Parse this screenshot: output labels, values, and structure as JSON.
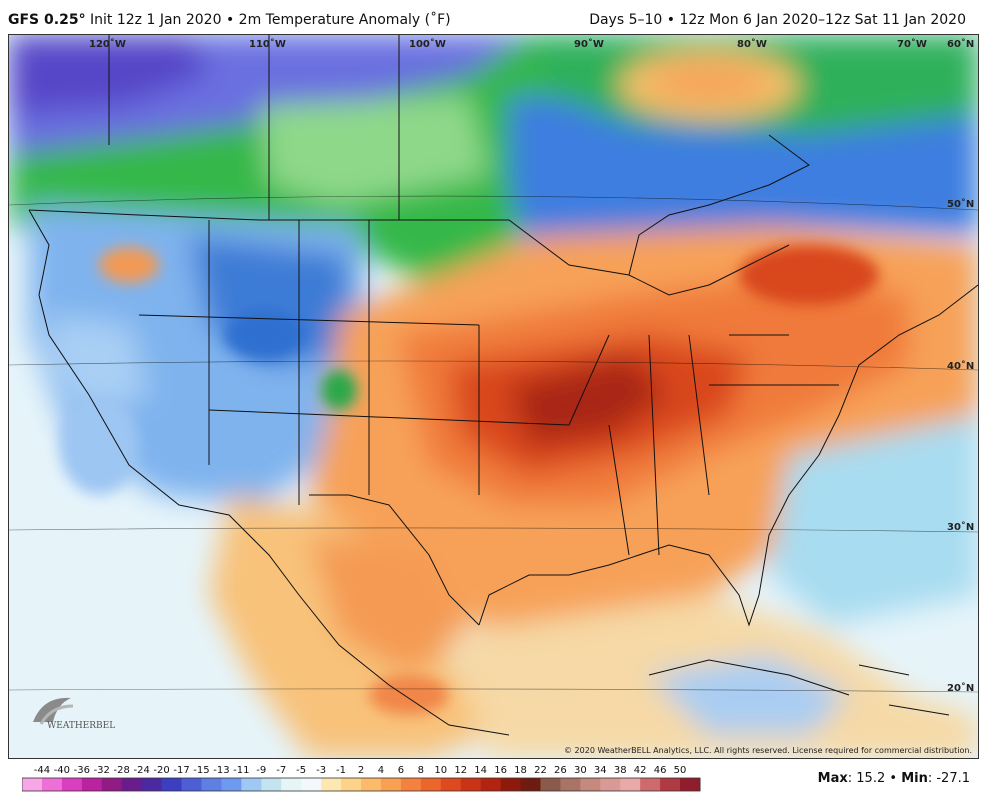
{
  "header": {
    "model": "GFS 0.25",
    "degree_mark": "°",
    "init": "Init 12z 1 Jan 2020",
    "bullet": "•",
    "field": "2m Temperature Anomaly (˚F)",
    "valid": "Days 5–10 • 12z Mon 6 Jan 2020–12z Sat 11 Jan 2020"
  },
  "map": {
    "lon_labels": [
      "120˚W",
      "110˚W",
      "100˚W",
      "90˚W",
      "80˚W",
      "70˚W",
      "60˚N"
    ],
    "lat_labels": [
      "50˚N",
      "40˚N",
      "30˚N",
      "20˚N"
    ],
    "copyright": "© 2020 WeatherBELL Analytics, LLC. All rights reserved. License required for commercial distribution.",
    "logo_text": "WEATHERBELL"
  },
  "colorbar": {
    "labels": [
      "-44",
      "-40",
      "-36",
      "-32",
      "-28",
      "-24",
      "-20",
      "-17",
      "-15",
      "-13",
      "-11",
      "-9",
      "-7",
      "-5",
      "-3",
      "-1",
      "2",
      "4",
      "6",
      "8",
      "10",
      "12",
      "14",
      "16",
      "18",
      "22",
      "26",
      "30",
      "34",
      "38",
      "42",
      "46",
      "50"
    ],
    "colors": [
      "#f7a6e6",
      "#ee70d6",
      "#db3fc1",
      "#b9239f",
      "#911a85",
      "#6a1c8c",
      "#4b2aa1",
      "#3b3fc0",
      "#4d5fd5",
      "#5f7fe3",
      "#6c9af0",
      "#9fc8f2",
      "#c3e3ef",
      "#e6f5f5",
      "#f2f8fb",
      "#fde9b0",
      "#fdd38a",
      "#fcba6a",
      "#f9a053",
      "#f4823e",
      "#ec652d",
      "#dd4a1f",
      "#c93417",
      "#b22311",
      "#8e1a0c",
      "#6e1b10",
      "#8b5a4a",
      "#a97464",
      "#c5897d",
      "#d99a95",
      "#e8aaa9",
      "#ce6a6c",
      "#b03a44",
      "#8f1d2b"
    ]
  },
  "stats": {
    "max_label": "Max",
    "max_value": "15.2",
    "sep": "•",
    "min_label": "Min",
    "min_value": "-27.1"
  }
}
